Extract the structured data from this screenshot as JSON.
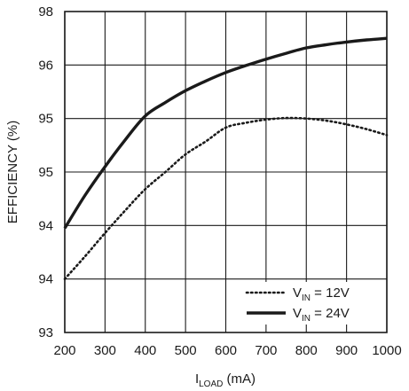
{
  "chart_data": {
    "type": "line",
    "title": "",
    "xlabel": {
      "main": "I",
      "sub": "LOAD",
      "unit": " (mA)"
    },
    "ylabel": "EFFICIENCY (%)",
    "x_ticks": [
      "200",
      "300",
      "400",
      "500",
      "600",
      "700",
      "800",
      "900",
      "1000"
    ],
    "y_ticks": [
      "93",
      "94",
      "94",
      "95",
      "95",
      "96",
      "98"
    ],
    "xlim": [
      200,
      1000
    ],
    "ylim": [
      0,
      6
    ],
    "grid": true,
    "legend_position": "bottom-right",
    "series": [
      {
        "name": {
          "main": "V",
          "sub": "IN",
          "rest": " = 12V"
        },
        "style": "dotted",
        "color": "#1a1a1a",
        "x": [
          200,
          250,
          300,
          350,
          400,
          450,
          500,
          550,
          600,
          650,
          700,
          750,
          800,
          850,
          900,
          950,
          1000
        ],
        "y": [
          1.0,
          1.42,
          1.86,
          2.28,
          2.68,
          3.0,
          3.33,
          3.57,
          3.83,
          3.92,
          3.98,
          4.01,
          4.0,
          3.96,
          3.89,
          3.8,
          3.69
        ]
      },
      {
        "name": {
          "main": "V",
          "sub": "IN",
          "rest": " = 24V"
        },
        "style": "solid",
        "color": "#1a1a1a",
        "x": [
          200,
          250,
          300,
          350,
          400,
          450,
          500,
          550,
          600,
          650,
          700,
          750,
          800,
          850,
          900,
          950,
          1000
        ],
        "y": [
          1.95,
          2.56,
          3.1,
          3.6,
          4.05,
          4.3,
          4.52,
          4.7,
          4.86,
          4.99,
          5.11,
          5.22,
          5.32,
          5.38,
          5.43,
          5.47,
          5.5
        ]
      }
    ]
  }
}
